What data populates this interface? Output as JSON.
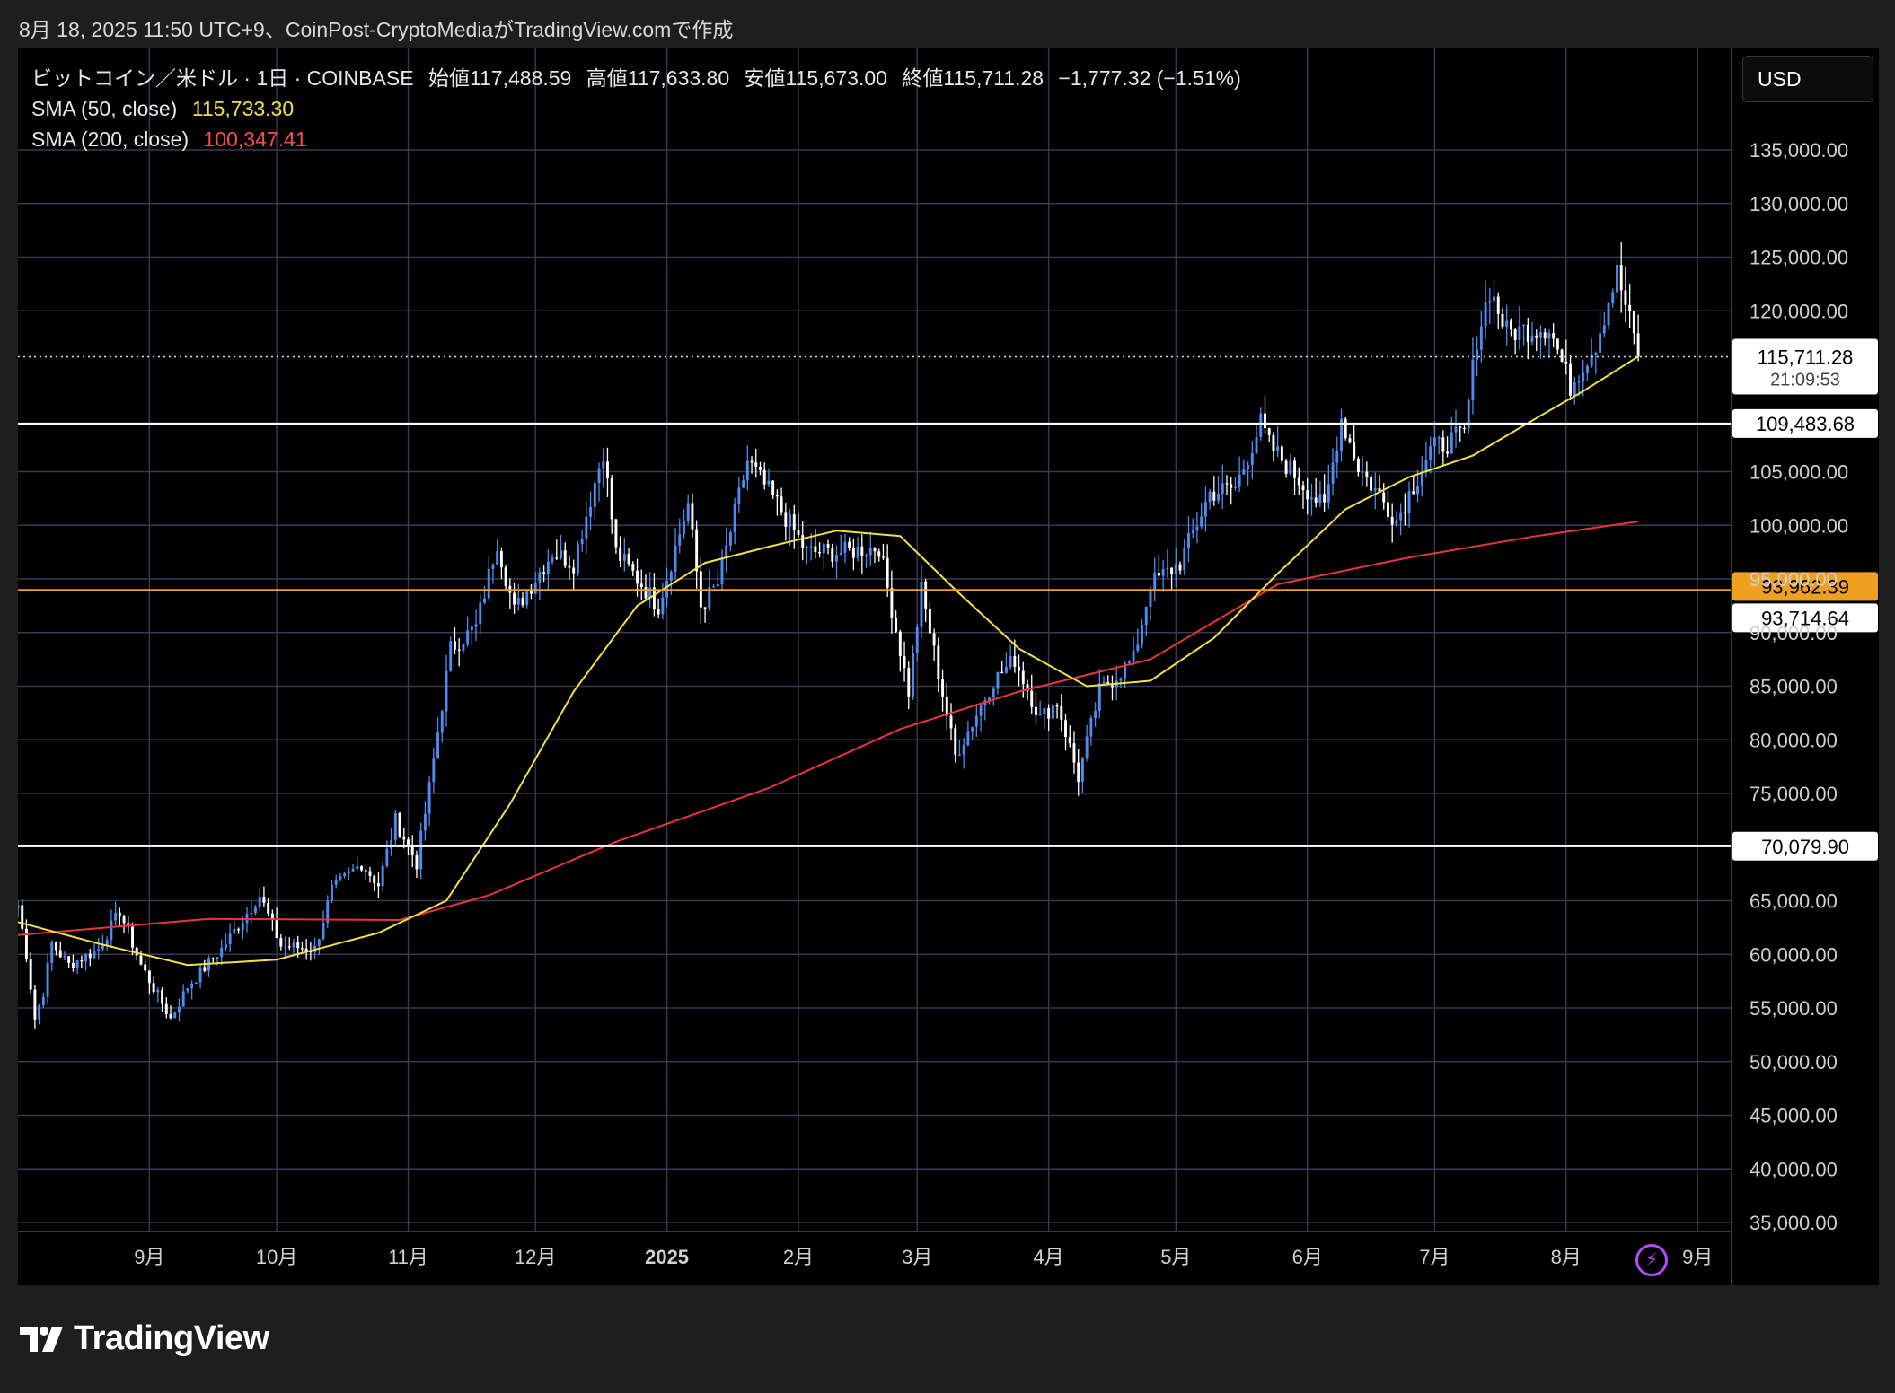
{
  "caption": "8月 18, 2025 11:50 UTC+9、CoinPost-CryptoMediaがTradingView.comで作成",
  "legend": {
    "symbol": "ビットコイン／米ドル · 1日 · COINBASE",
    "open_label": "始値",
    "open": "117,488.59",
    "high_label": "高値",
    "high": "117,633.80",
    "low_label": "安値",
    "low": "115,673.00",
    "close_label": "終値",
    "close": "115,711.28",
    "change": "−1,777.32 (−1.51%)",
    "sma50_label": "SMA (50, close)",
    "sma50_value": "115,733.30",
    "sma200_label": "SMA (200, close)",
    "sma200_value": "100,347.41"
  },
  "currency": "USD",
  "brand": "TradingView",
  "chart_data": {
    "type": "candlestick",
    "y_axis": {
      "min": 35000,
      "max": 135000,
      "ticks": [
        "135,000.00",
        "130,000.00",
        "125,000.00",
        "120,000.00",
        "105,000.00",
        "100,000.00",
        "95,000.00",
        "90,000.00",
        "85,000.00",
        "80,000.00",
        "75,000.00",
        "65,000.00",
        "60,000.00",
        "55,000.00",
        "50,000.00",
        "45,000.00",
        "40,000.00",
        "35,000.00"
      ],
      "tick_values": [
        135000,
        130000,
        125000,
        120000,
        105000,
        100000,
        95000,
        90000,
        85000,
        80000,
        75000,
        65000,
        60000,
        55000,
        50000,
        45000,
        40000,
        35000
      ]
    },
    "x_axis": {
      "labels": [
        "9月",
        "10月",
        "11月",
        "12月",
        "2025",
        "2月",
        "3月",
        "4月",
        "5月",
        "6月",
        "7月",
        "8月",
        "9月"
      ],
      "dates": [
        "2024-09-01",
        "2024-10-01",
        "2024-11-01",
        "2024-12-01",
        "2025-01-01",
        "2025-02-01",
        "2025-03-01",
        "2025-04-01",
        "2025-05-01",
        "2025-06-01",
        "2025-07-01",
        "2025-08-01",
        "2025-09-01"
      ],
      "start": "2024-08-01",
      "end": "2025-09-09"
    },
    "horizontal_lines": [
      {
        "value": 109483.68,
        "label": "109,483.68",
        "color": "#ffffff"
      },
      {
        "value": 93962.39,
        "label": "93,962.39",
        "color": "#f0a020"
      },
      {
        "value": 93714.64,
        "label": "93,714.64",
        "color": "#ffffff"
      },
      {
        "value": 70079.9,
        "label": "70,079.90",
        "color": "#ffffff"
      }
    ],
    "last_price": {
      "value": 115711.28,
      "label": "115,711.28",
      "countdown": "21:09:53"
    },
    "anchors": [
      {
        "d": "2024-08-01",
        "p": 64600
      },
      {
        "d": "2024-08-03",
        "p": 60000
      },
      {
        "d": "2024-08-05",
        "p": 54000
      },
      {
        "d": "2024-08-07",
        "p": 56500
      },
      {
        "d": "2024-08-09",
        "p": 61000
      },
      {
        "d": "2024-08-13",
        "p": 59000
      },
      {
        "d": "2024-08-20",
        "p": 60500
      },
      {
        "d": "2024-08-25",
        "p": 64000
      },
      {
        "d": "2024-08-30",
        "p": 59000
      },
      {
        "d": "2024-09-06",
        "p": 54000
      },
      {
        "d": "2024-09-10",
        "p": 57000
      },
      {
        "d": "2024-09-18",
        "p": 60500
      },
      {
        "d": "2024-09-27",
        "p": 65500
      },
      {
        "d": "2024-10-02",
        "p": 60800
      },
      {
        "d": "2024-10-10",
        "p": 60500
      },
      {
        "d": "2024-10-14",
        "p": 66000
      },
      {
        "d": "2024-10-21",
        "p": 68500
      },
      {
        "d": "2024-10-25",
        "p": 66500
      },
      {
        "d": "2024-10-29",
        "p": 72500
      },
      {
        "d": "2024-11-03",
        "p": 68500
      },
      {
        "d": "2024-11-06",
        "p": 75500
      },
      {
        "d": "2024-11-11",
        "p": 88500
      },
      {
        "d": "2024-11-17",
        "p": 90500
      },
      {
        "d": "2024-11-22",
        "p": 98500
      },
      {
        "d": "2024-11-26",
        "p": 92000
      },
      {
        "d": "2024-12-05",
        "p": 97500
      },
      {
        "d": "2024-12-10",
        "p": 96500
      },
      {
        "d": "2024-12-17",
        "p": 107000
      },
      {
        "d": "2024-12-20",
        "p": 97500
      },
      {
        "d": "2024-12-30",
        "p": 92500
      },
      {
        "d": "2025-01-06",
        "p": 102000
      },
      {
        "d": "2025-01-09",
        "p": 92500
      },
      {
        "d": "2025-01-13",
        "p": 94500
      },
      {
        "d": "2025-01-20",
        "p": 106000
      },
      {
        "d": "2025-01-27",
        "p": 102000
      },
      {
        "d": "2025-02-03",
        "p": 97500
      },
      {
        "d": "2025-02-12",
        "p": 97500
      },
      {
        "d": "2025-02-20",
        "p": 98000
      },
      {
        "d": "2025-02-27",
        "p": 84500
      },
      {
        "d": "2025-03-02",
        "p": 94000
      },
      {
        "d": "2025-03-10",
        "p": 78500
      },
      {
        "d": "2025-03-19",
        "p": 85500
      },
      {
        "d": "2025-03-24",
        "p": 87500
      },
      {
        "d": "2025-03-30",
        "p": 82000
      },
      {
        "d": "2025-04-03",
        "p": 83500
      },
      {
        "d": "2025-04-08",
        "p": 76500
      },
      {
        "d": "2025-04-13",
        "p": 84500
      },
      {
        "d": "2025-04-21",
        "p": 87500
      },
      {
        "d": "2025-04-25",
        "p": 94500
      },
      {
        "d": "2025-05-02",
        "p": 96500
      },
      {
        "d": "2025-05-09",
        "p": 103000
      },
      {
        "d": "2025-05-15",
        "p": 103500
      },
      {
        "d": "2025-05-21",
        "p": 109500
      },
      {
        "d": "2025-05-23",
        "p": 107500
      },
      {
        "d": "2025-06-05",
        "p": 101500
      },
      {
        "d": "2025-06-09",
        "p": 110000
      },
      {
        "d": "2025-06-13",
        "p": 105500
      },
      {
        "d": "2025-06-22",
        "p": 100500
      },
      {
        "d": "2025-06-30",
        "p": 107000
      },
      {
        "d": "2025-07-08",
        "p": 108500
      },
      {
        "d": "2025-07-11",
        "p": 117500
      },
      {
        "d": "2025-07-14",
        "p": 122000
      },
      {
        "d": "2025-07-18",
        "p": 118000
      },
      {
        "d": "2025-07-28",
        "p": 118500
      },
      {
        "d": "2025-08-02",
        "p": 113000
      },
      {
        "d": "2025-08-08",
        "p": 117000
      },
      {
        "d": "2025-08-13",
        "p": 123500
      },
      {
        "d": "2025-08-17",
        "p": 117500
      },
      {
        "d": "2025-08-18",
        "p": 115711
      }
    ],
    "sma50_points": [
      {
        "d": "2024-08-01",
        "p": 63000
      },
      {
        "d": "2024-08-20",
        "p": 61000
      },
      {
        "d": "2024-09-10",
        "p": 59000
      },
      {
        "d": "2024-10-01",
        "p": 59500
      },
      {
        "d": "2024-10-25",
        "p": 62000
      },
      {
        "d": "2024-11-10",
        "p": 65000
      },
      {
        "d": "2024-11-25",
        "p": 74000
      },
      {
        "d": "2024-12-10",
        "p": 84500
      },
      {
        "d": "2024-12-25",
        "p": 92500
      },
      {
        "d": "2025-01-10",
        "p": 96500
      },
      {
        "d": "2025-01-25",
        "p": 98000
      },
      {
        "d": "2025-02-10",
        "p": 99500
      },
      {
        "d": "2025-02-25",
        "p": 99000
      },
      {
        "d": "2025-03-10",
        "p": 94000
      },
      {
        "d": "2025-03-25",
        "p": 88500
      },
      {
        "d": "2025-04-10",
        "p": 85000
      },
      {
        "d": "2025-04-25",
        "p": 85500
      },
      {
        "d": "2025-05-10",
        "p": 89500
      },
      {
        "d": "2025-05-25",
        "p": 95500
      },
      {
        "d": "2025-06-10",
        "p": 101500
      },
      {
        "d": "2025-06-25",
        "p": 104500
      },
      {
        "d": "2025-07-10",
        "p": 106500
      },
      {
        "d": "2025-07-25",
        "p": 110000
      },
      {
        "d": "2025-08-05",
        "p": 112500
      },
      {
        "d": "2025-08-18",
        "p": 115733
      }
    ],
    "sma200_points": [
      {
        "d": "2024-08-01",
        "p": 61800
      },
      {
        "d": "2024-09-15",
        "p": 63300
      },
      {
        "d": "2024-10-30",
        "p": 63200
      },
      {
        "d": "2024-11-20",
        "p": 65500
      },
      {
        "d": "2024-12-20",
        "p": 70500
      },
      {
        "d": "2025-01-25",
        "p": 75500
      },
      {
        "d": "2025-02-25",
        "p": 81000
      },
      {
        "d": "2025-03-25",
        "p": 84500
      },
      {
        "d": "2025-04-25",
        "p": 87500
      },
      {
        "d": "2025-05-25",
        "p": 94500
      },
      {
        "d": "2025-06-25",
        "p": 97000
      },
      {
        "d": "2025-07-25",
        "p": 99000
      },
      {
        "d": "2025-08-18",
        "p": 100347
      }
    ],
    "colors": {
      "up": "#4d8bf0",
      "down": "#ffffff",
      "sma50": "#f2e04a",
      "sma200": "#e8343c",
      "grid": "#363a55",
      "background": "#000000",
      "axis_text": "#d0d0d0",
      "tooltip_orange": "#f0a020"
    },
    "grid": true
  }
}
